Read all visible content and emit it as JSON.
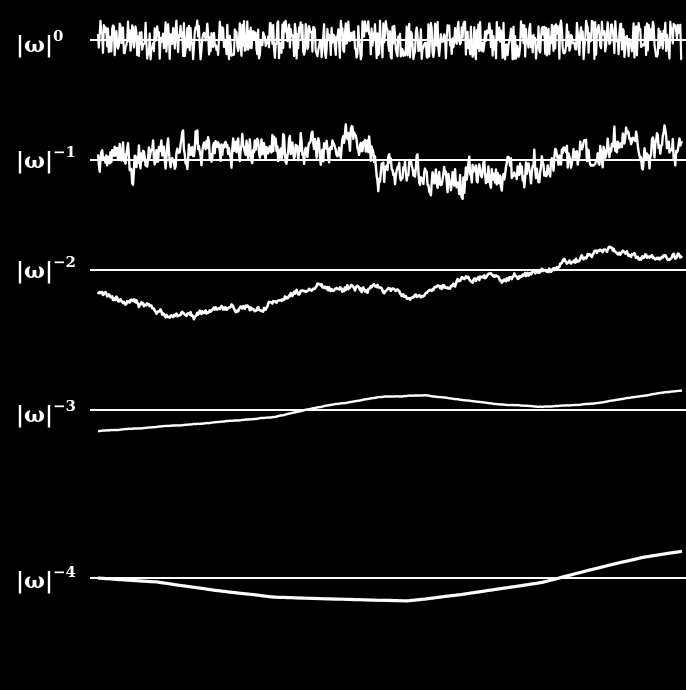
{
  "colors": {
    "background": "#000000",
    "trace": "#ffffff"
  },
  "chart_data": {
    "type": "line",
    "title": "",
    "grid": false,
    "legend": "none",
    "x_range": [
      0,
      1
    ],
    "note_units": "arbitrary (no axis ticks printed); each panel is a noise trace with a zero baseline",
    "series": [
      {
        "label_base": "|ω|",
        "label_exponent": "0",
        "y_range": [
          -1.6,
          1.6
        ],
        "roughness": 1.0,
        "shape": [
          [
            0,
            0
          ],
          [
            1,
            0
          ]
        ],
        "amplitude": 0.75
      },
      {
        "label_base": "|ω|",
        "label_exponent": "−1",
        "y_range": [
          -2,
          2
        ],
        "roughness": 0.6,
        "shape": [
          [
            0,
            0.3
          ],
          [
            0.15,
            0.35
          ],
          [
            0.3,
            0.6
          ],
          [
            0.45,
            0.9
          ],
          [
            0.47,
            0.95
          ],
          [
            0.48,
            -0.5
          ],
          [
            0.62,
            -0.8
          ],
          [
            0.73,
            -0.5
          ],
          [
            0.85,
            0.2
          ],
          [
            0.93,
            0.9
          ],
          [
            1,
            0.3
          ]
        ],
        "amplitude": 0.45
      },
      {
        "label_base": "|ω|",
        "label_exponent": "−2",
        "y_range": [
          -3,
          2
        ],
        "roughness": 0.35,
        "shape": [
          [
            0,
            -1.3
          ],
          [
            0.08,
            -1.9
          ],
          [
            0.14,
            -2.4
          ],
          [
            0.28,
            -1.9
          ],
          [
            0.38,
            -0.9
          ],
          [
            0.5,
            -1.1
          ],
          [
            0.56,
            -1.35
          ],
          [
            0.62,
            -0.5
          ],
          [
            0.74,
            -0.3
          ],
          [
            0.8,
            0.3
          ],
          [
            0.88,
            1.1
          ],
          [
            0.92,
            0.7
          ],
          [
            0.97,
            0.6
          ],
          [
            1,
            0.6
          ]
        ],
        "amplitude": 0.12
      },
      {
        "label_base": "|ω|",
        "label_exponent": "−3",
        "y_range": [
          -3,
          3
        ],
        "roughness": 0.15,
        "shape": [
          [
            0,
            -2.1
          ],
          [
            0.15,
            -1.5
          ],
          [
            0.3,
            -0.7
          ],
          [
            0.38,
            0.3
          ],
          [
            0.48,
            1.3
          ],
          [
            0.56,
            1.5
          ],
          [
            0.68,
            0.6
          ],
          [
            0.76,
            0.3
          ],
          [
            0.86,
            0.7
          ],
          [
            0.96,
            1.7
          ],
          [
            1,
            1.9
          ]
        ],
        "amplitude": 0.03
      },
      {
        "label_base": "|ω|",
        "label_exponent": "−4",
        "y_range": [
          -5,
          5
        ],
        "roughness": 0.08,
        "shape": [
          [
            0,
            0
          ],
          [
            0.1,
            -0.7
          ],
          [
            0.2,
            -2.2
          ],
          [
            0.3,
            -3.4
          ],
          [
            0.42,
            -3.8
          ],
          [
            0.53,
            -4.1
          ],
          [
            0.62,
            -3.0
          ],
          [
            0.76,
            -0.8
          ],
          [
            0.84,
            1.4
          ],
          [
            0.93,
            3.6
          ],
          [
            1,
            4.8
          ]
        ],
        "amplitude": 0.02
      }
    ]
  }
}
